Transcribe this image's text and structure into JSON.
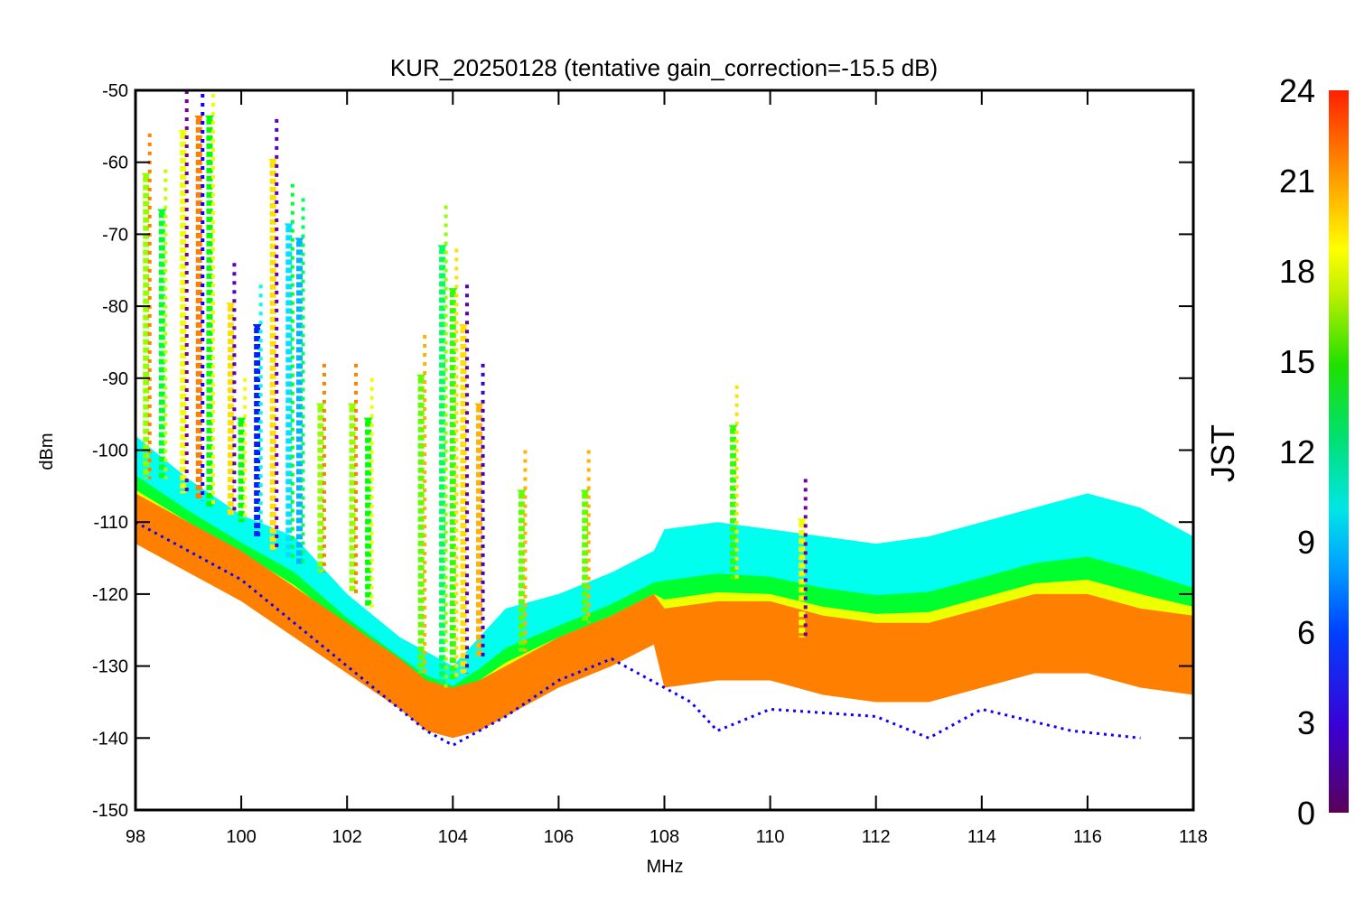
{
  "chart_data": {
    "type": "scatter",
    "title": "KUR_20250128 (tentative gain_correction=-15.5 dB)",
    "xlabel": "MHz",
    "ylabel": "dBm",
    "xlim": [
      98,
      118
    ],
    "ylim": [
      -150,
      -50
    ],
    "x_ticks": [
      "98",
      "100",
      "102",
      "104",
      "106",
      "108",
      "110",
      "112",
      "114",
      "116",
      "118"
    ],
    "y_ticks": [
      "-50",
      "-60",
      "-70",
      "-80",
      "-90",
      "-100",
      "-110",
      "-120",
      "-130",
      "-140",
      "-150"
    ],
    "grid": false,
    "colorbar": {
      "label": "JST",
      "range": [
        0,
        24
      ],
      "ticks": [
        "24",
        "21",
        "18",
        "15",
        "12",
        "9",
        "6",
        "3",
        "0"
      ],
      "colormap": "rainbow"
    },
    "series": [
      {
        "hour": 22,
        "role": "noise floor",
        "x": [
          98,
          99,
          100,
          101,
          102,
          103,
          103.5,
          104,
          104.5,
          105,
          106,
          107,
          107.8,
          108,
          109,
          110,
          111,
          112,
          113,
          114,
          115,
          116,
          117,
          118
        ],
        "y": [
          -108,
          -112,
          -116,
          -121,
          -126,
          -131,
          -134,
          -135,
          -134,
          -132,
          -128,
          -125,
          -122,
          -124,
          -123,
          -123,
          -125,
          -126,
          -126,
          -124,
          -122,
          -122,
          -124,
          -125
        ]
      },
      {
        "hour": 9,
        "role": "daytime envelope",
        "x": [
          98,
          99,
          100,
          101,
          102,
          103,
          103.5,
          104,
          104.5,
          105,
          106,
          107,
          107.8,
          108,
          109,
          110,
          111,
          112,
          113,
          114,
          115,
          116,
          117,
          118
        ],
        "y": [
          -98,
          -104,
          -109,
          -112,
          -120,
          -126,
          -128,
          -130,
          -126,
          -122,
          -120,
          -117,
          -114,
          -111,
          -110,
          -111,
          -112,
          -113,
          -112,
          -110,
          -108,
          -106,
          -108,
          -112
        ]
      },
      {
        "hour": 3,
        "role": "low outliers",
        "x": [
          98,
          100,
          102,
          103.5,
          104,
          105,
          106,
          107,
          108.5,
          109,
          110,
          112,
          113,
          114,
          115.7,
          117
        ],
        "y": [
          -110,
          -118,
          -130,
          -139,
          -141,
          -137,
          -132,
          -129,
          -135,
          -139,
          -136,
          -137,
          -140,
          -136,
          -139,
          -140
        ]
      }
    ],
    "stations": [
      {
        "x": 98.2,
        "top": -62,
        "bottom": -104,
        "hour": 17
      },
      {
        "x": 98.5,
        "top": -67,
        "bottom": -104,
        "hour": 13
      },
      {
        "x": 98.9,
        "top": -56,
        "bottom": -106,
        "hour": 19
      },
      {
        "x": 99.2,
        "top": -54,
        "bottom": -107,
        "hour": 22
      },
      {
        "x": 99.4,
        "top": -54,
        "bottom": -108,
        "hour": 14
      },
      {
        "x": 99.8,
        "top": -80,
        "bottom": -109,
        "hour": 20
      },
      {
        "x": 100.0,
        "top": -96,
        "bottom": -110,
        "hour": 14
      },
      {
        "x": 100.3,
        "top": -83,
        "bottom": -112,
        "hour": 4
      },
      {
        "x": 100.6,
        "top": -60,
        "bottom": -114,
        "hour": 20
      },
      {
        "x": 100.9,
        "top": -69,
        "bottom": -115,
        "hour": 8
      },
      {
        "x": 101.1,
        "top": -71,
        "bottom": -116,
        "hour": 7
      },
      {
        "x": 101.5,
        "top": -94,
        "bottom": -117,
        "hour": 17
      },
      {
        "x": 102.1,
        "top": -94,
        "bottom": -120,
        "hour": 17
      },
      {
        "x": 102.4,
        "top": -96,
        "bottom": -122,
        "hour": 14
      },
      {
        "x": 103.4,
        "top": -90,
        "bottom": -131,
        "hour": 16
      },
      {
        "x": 103.8,
        "top": -72,
        "bottom": -133,
        "hour": 12
      },
      {
        "x": 104.0,
        "top": -78,
        "bottom": -132,
        "hour": 15
      },
      {
        "x": 104.2,
        "top": -83,
        "bottom": -131,
        "hour": 20
      },
      {
        "x": 104.5,
        "top": -94,
        "bottom": -129,
        "hour": 21
      },
      {
        "x": 105.3,
        "top": -106,
        "bottom": -128,
        "hour": 16
      },
      {
        "x": 106.5,
        "top": -106,
        "bottom": -124,
        "hour": 16
      },
      {
        "x": 109.3,
        "top": -97,
        "bottom": -118,
        "hour": 15
      },
      {
        "x": 110.6,
        "top": -110,
        "bottom": -126,
        "hour": 19
      }
    ]
  }
}
